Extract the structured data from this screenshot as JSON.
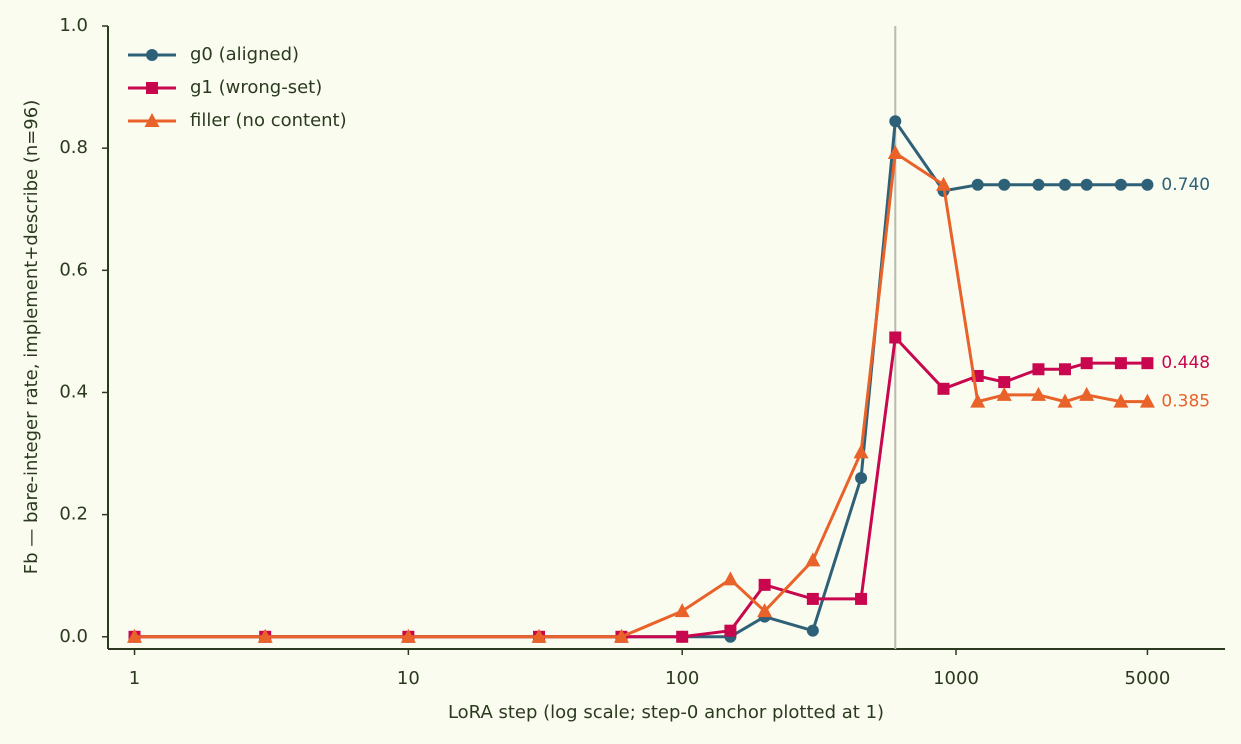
{
  "chart_data": {
    "type": "line",
    "x_label": "LoRA step (log scale; step-0 anchor plotted at 1)",
    "y_label": "Fb — bare-integer rate, implement+describe (n=96)",
    "x": [
      1,
      3,
      10,
      30,
      60,
      100,
      150,
      200,
      300,
      450,
      600,
      900,
      1200,
      1500,
      2000,
      2500,
      3000,
      4000,
      5000
    ],
    "x_log": true,
    "xlim": [
      0.8,
      9600
    ],
    "xticks": [
      1,
      10,
      100,
      1000,
      5000
    ],
    "ylim": [
      -0.02,
      1.0
    ],
    "yticks": [
      {
        "value": 0,
        "label": "0.0"
      },
      {
        "value": 0.2,
        "label": "0.2"
      },
      {
        "value": 0.4,
        "label": "0.4"
      },
      {
        "value": 0.6,
        "label": "0.6"
      },
      {
        "value": 0.8,
        "label": "0.8"
      },
      {
        "value": 1.0,
        "label": "1.0"
      }
    ],
    "grid": false,
    "vline": 600,
    "legend": "upper left",
    "series": [
      {
        "name": "g0 (aligned)",
        "color": "#2e6177",
        "marker": "circle",
        "values": [
          0,
          0,
          0,
          0,
          0,
          0,
          0,
          0.033,
          0.01,
          0.26,
          0.844,
          0.73,
          0.74,
          0.74,
          0.74,
          0.74,
          0.74,
          0.74,
          0.74
        ],
        "value_labels": [
          null,
          null,
          null,
          null,
          null,
          null,
          null,
          null,
          null,
          null,
          null,
          null,
          null,
          null,
          null,
          null,
          null,
          null,
          "0.740"
        ]
      },
      {
        "name": "g1 (wrong-set)",
        "color": "#c8074f",
        "marker": "square",
        "values": [
          0,
          0,
          0,
          0,
          0,
          0,
          0.01,
          0.085,
          0.062,
          0.062,
          0.49,
          0.406,
          0.427,
          0.417,
          0.438,
          0.438,
          0.448,
          0.448,
          0.448
        ],
        "value_labels": [
          null,
          null,
          null,
          null,
          null,
          null,
          null,
          null,
          null,
          null,
          null,
          null,
          null,
          null,
          null,
          null,
          null,
          null,
          "0.448"
        ]
      },
      {
        "name": "filler (no content)",
        "color": "#e8622a",
        "marker": "triangle",
        "values": [
          0,
          0,
          0,
          0,
          0,
          0.042,
          0.094,
          0.042,
          0.125,
          0.302,
          0.792,
          0.74,
          0.385,
          0.396,
          0.396,
          0.385,
          0.396,
          0.385,
          0.385
        ],
        "value_labels": [
          null,
          null,
          null,
          null,
          null,
          null,
          null,
          null,
          null,
          null,
          null,
          null,
          null,
          null,
          null,
          null,
          null,
          null,
          "0.385"
        ]
      }
    ]
  }
}
